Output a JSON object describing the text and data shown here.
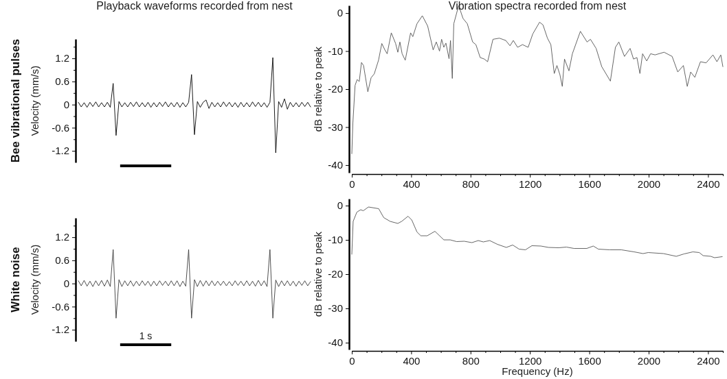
{
  "chart_data": [
    {
      "type": "line",
      "title": "Playback waveforms recorded from nest",
      "ylabel": "Velocity (mm/s)",
      "annotations": [
        "Bee vibrational pulses"
      ],
      "tick_labels": "y",
      "ylim": [
        -1.5,
        1.7
      ],
      "yticks": [
        1.2,
        {
          "value": 0.9,
          "label": null
        },
        0.6,
        {
          "value": 0.3,
          "label": null
        },
        0,
        {
          "value": -0.3,
          "label": null
        },
        -0.6,
        {
          "value": -0.9,
          "label": null
        },
        -1.2,
        {
          "value": 1.5,
          "label": null
        }
      ],
      "categories": [
        null,
        null,
        null,
        null,
        null,
        null,
        null,
        null,
        null,
        null,
        null,
        null,
        null,
        null,
        null,
        null,
        null,
        null,
        null,
        null,
        null,
        null,
        null,
        null,
        null,
        null,
        null,
        null,
        null,
        null,
        null,
        null,
        null,
        null,
        null,
        null,
        null,
        null,
        null,
        null,
        null,
        null,
        null,
        null,
        null,
        null,
        null,
        null,
        null,
        null,
        null,
        null,
        null,
        null,
        null,
        null,
        null,
        null,
        null,
        null,
        null,
        null,
        null,
        null,
        null,
        null,
        null,
        null,
        null,
        null,
        null,
        null,
        null,
        null,
        null,
        null,
        null,
        null,
        null,
        null,
        null
      ],
      "series": [
        {
          "color": "#000000",
          "values": [
            0.06,
            -0.06,
            0.05,
            -0.07,
            0.06,
            -0.05,
            0.07,
            -0.06,
            0.05,
            -0.06,
            0.06,
            -0.07,
            0.55,
            -0.8,
            0.08,
            -0.06,
            0.05,
            -0.06,
            0.06,
            -0.05,
            0.07,
            -0.06,
            0.05,
            -0.06,
            0.06,
            -0.07,
            0.05,
            -0.06,
            0.06,
            -0.05,
            0.07,
            -0.06,
            0.05,
            -0.06,
            0.06,
            -0.07,
            0.05,
            -0.06,
            0.06,
            0.78,
            -0.78,
            0.08,
            -0.07,
            0.06,
            0.12,
            -0.1,
            0.06,
            -0.06,
            0.05,
            -0.06,
            0.07,
            -0.05,
            0.06,
            -0.06,
            0.05,
            -0.07,
            0.06,
            -0.06,
            0.05,
            -0.06,
            0.07,
            -0.05,
            0.06,
            -0.06,
            0.05,
            -0.07,
            0.06,
            1.22,
            -1.25,
            0.08,
            -0.07,
            0.15,
            -0.12,
            0.06,
            -0.06,
            0.05,
            -0.06,
            0.06,
            -0.05,
            0.06,
            -0.06
          ]
        }
      ]
    },
    {
      "type": "line",
      "title": "Vibration spectra recorded from nest",
      "ylabel": "dB relative to peak",
      "xlim": [
        0,
        2500
      ],
      "ylim": [
        -42,
        2
      ],
      "xticks": [
        0,
        {
          "value": 100,
          "label": null
        },
        {
          "value": 200,
          "label": null
        },
        {
          "value": 300,
          "label": null
        },
        400,
        {
          "value": 500,
          "label": null
        },
        {
          "value": 600,
          "label": null
        },
        {
          "value": 700,
          "label": null
        },
        800,
        {
          "value": 900,
          "label": null
        },
        {
          "value": 1000,
          "label": null
        },
        {
          "value": 1100,
          "label": null
        },
        1200,
        {
          "value": 1300,
          "label": null
        },
        {
          "value": 1400,
          "label": null
        },
        {
          "value": 1500,
          "label": null
        },
        1600,
        {
          "value": 1700,
          "label": null
        },
        {
          "value": 1800,
          "label": null
        },
        {
          "value": 1900,
          "label": null
        },
        2000,
        {
          "value": 2100,
          "label": null
        },
        {
          "value": 2200,
          "label": null
        },
        {
          "value": 2300,
          "label": null
        },
        2400,
        {
          "value": 2500,
          "label": null
        }
      ],
      "yticks": [
        0,
        -10,
        -20,
        -30,
        -40
      ],
      "series": [
        {
          "color": "#555555",
          "x": [
            0,
            7,
            22,
            36,
            50,
            65,
            79,
            108,
            130,
            151,
            180,
            202,
            223,
            238,
            266,
            295,
            310,
            324,
            339,
            360,
            396,
            411,
            439,
            475,
            511,
            548,
            569,
            591,
            605,
            620,
            634,
            655,
            665,
            677,
            687,
            720,
            749,
            778,
            814,
            836,
            865,
            893,
            915,
            951,
            994,
            1037,
            1066,
            1088,
            1117,
            1150,
            1188,
            1219,
            1265,
            1288,
            1318,
            1341,
            1364,
            1382,
            1402,
            1418,
            1433,
            1463,
            1486,
            1540,
            1585,
            1608,
            1646,
            1684,
            1742,
            1776,
            1799,
            1837,
            1875,
            1898,
            1921,
            1941,
            1959,
            1987,
            2013,
            2043,
            2104,
            2158,
            2196,
            2234,
            2260,
            2283,
            2311,
            2349,
            2387,
            2433,
            2460,
            2486,
            2500
          ],
          "values": [
            -37,
            -29,
            -19,
            -17.5,
            -18,
            -13,
            -13.8,
            -20.7,
            -17,
            -16,
            -12.4,
            -8,
            -9.7,
            -10.7,
            -5.2,
            -8,
            -10.3,
            -7.6,
            -10.7,
            -12.4,
            -5.2,
            -6.2,
            -2.8,
            -0.7,
            -3.4,
            -9.7,
            -7.6,
            -10,
            -6.9,
            -9,
            -7.9,
            -12,
            -7.2,
            -17.2,
            -2.8,
            2,
            -1.4,
            -2.8,
            -7.6,
            -8.3,
            -11.7,
            -12.1,
            -12.8,
            -6.9,
            -6.6,
            -7.2,
            -8.6,
            -7.2,
            -9,
            -8.3,
            -9,
            -5.5,
            -2.4,
            -3.1,
            -6.6,
            -8.3,
            -15.9,
            -13.8,
            -16.2,
            -19.3,
            -12.1,
            -15.2,
            -10.7,
            -4.8,
            -7.6,
            -6.9,
            -9.3,
            -14.1,
            -17.9,
            -9,
            -7.6,
            -11.4,
            -9.3,
            -12.1,
            -11.7,
            -15.9,
            -10.7,
            -12.6,
            -10.7,
            -11,
            -10.3,
            -11.4,
            -15.5,
            -13.8,
            -19.3,
            -15.5,
            -16.9,
            -12.8,
            -13.1,
            -11,
            -12.8,
            -11,
            -14.1
          ]
        }
      ]
    },
    {
      "type": "line",
      "ylabel": "Velocity (mm/s)",
      "annotations": [
        "White noise",
        "1 s"
      ],
      "tick_labels": "y",
      "ylim": [
        -1.5,
        1.7
      ],
      "yticks": [
        1.2,
        {
          "value": 0.9,
          "label": null
        },
        0.6,
        {
          "value": 0.3,
          "label": null
        },
        0,
        {
          "value": -0.3,
          "label": null
        },
        -0.6,
        {
          "value": -0.9,
          "label": null
        },
        -1.2,
        {
          "value": 1.5,
          "label": null
        }
      ],
      "categories": [
        null,
        null,
        null,
        null,
        null,
        null,
        null,
        null,
        null,
        null,
        null,
        null,
        null,
        null,
        null,
        null,
        null,
        null,
        null,
        null,
        null,
        null,
        null,
        null,
        null,
        null,
        null,
        null,
        null,
        null,
        null,
        null,
        null,
        null,
        null,
        null,
        null,
        null,
        null,
        null,
        null,
        null,
        null,
        null,
        null,
        null,
        null,
        null,
        null,
        null,
        null,
        null,
        null,
        null,
        null,
        null,
        null,
        null,
        null,
        null,
        null,
        null,
        null,
        null,
        null,
        null,
        null,
        null,
        null,
        null,
        null,
        null,
        null,
        null,
        null,
        null,
        null,
        null,
        null,
        null,
        null
      ],
      "series": [
        {
          "color": "#3a3a3a",
          "values": [
            0.07,
            -0.06,
            0.08,
            -0.07,
            0.06,
            -0.08,
            0.07,
            -0.06,
            0.08,
            -0.07,
            0.09,
            -0.08,
            0.88,
            -0.9,
            0.1,
            -0.08,
            0.07,
            -0.06,
            0.07,
            -0.07,
            0.06,
            -0.06,
            0.07,
            -0.05,
            0.06,
            -0.07,
            0.06,
            -0.06,
            0.07,
            -0.05,
            0.06,
            -0.06,
            0.07,
            -0.06,
            0.07,
            -0.08,
            0.06,
            -0.07,
            0.88,
            -0.9,
            0.1,
            -0.08,
            0.08,
            -0.07,
            0.07,
            -0.06,
            0.07,
            -0.06,
            0.06,
            -0.05,
            0.06,
            -0.06,
            0.05,
            -0.06,
            0.07,
            -0.05,
            0.06,
            -0.06,
            0.07,
            -0.06,
            0.06,
            -0.07,
            0.08,
            -0.06,
            0.07,
            -0.08,
            0.88,
            -0.9,
            0.09,
            -0.08,
            0.07,
            -0.06,
            0.07,
            -0.06,
            0.06,
            -0.07,
            0.06,
            -0.05,
            0.07,
            -0.06,
            0.05
          ]
        }
      ]
    },
    {
      "type": "line",
      "ylabel": "dB relative to peak",
      "xlabel": "Frequency (Hz)",
      "xlim": [
        0,
        2500
      ],
      "ylim": [
        -42,
        2
      ],
      "xticks": [
        0,
        {
          "value": 100,
          "label": null
        },
        {
          "value": 200,
          "label": null
        },
        {
          "value": 300,
          "label": null
        },
        400,
        {
          "value": 500,
          "label": null
        },
        {
          "value": 600,
          "label": null
        },
        {
          "value": 700,
          "label": null
        },
        800,
        {
          "value": 900,
          "label": null
        },
        {
          "value": 1000,
          "label": null
        },
        {
          "value": 1100,
          "label": null
        },
        1200,
        {
          "value": 1300,
          "label": null
        },
        {
          "value": 1400,
          "label": null
        },
        {
          "value": 1500,
          "label": null
        },
        1600,
        {
          "value": 1700,
          "label": null
        },
        {
          "value": 1800,
          "label": null
        },
        {
          "value": 1900,
          "label": null
        },
        2000,
        {
          "value": 2100,
          "label": null
        },
        {
          "value": 2200,
          "label": null
        },
        {
          "value": 2300,
          "label": null
        },
        2400,
        {
          "value": 2500,
          "label": null
        }
      ],
      "yticks": [
        0,
        -10,
        -20,
        -30,
        -40
      ],
      "series": [
        {
          "color": "#555555",
          "x": [
            0,
            9,
            34,
            60,
            77,
            112,
            181,
            215,
            258,
            310,
            336,
            379,
            404,
            439,
            465,
            508,
            560,
            620,
            663,
            706,
            757,
            809,
            852,
            886,
            929,
            981,
            1041,
            1084,
            1127,
            1170,
            1213,
            1274,
            1325,
            1394,
            1446,
            1497,
            1583,
            1627,
            1661,
            1738,
            1816,
            1902,
            1962,
            1997,
            2100,
            2186,
            2238,
            2298,
            2341,
            2367,
            2418,
            2444,
            2496
          ],
          "values": [
            -14.2,
            -4.6,
            -1.9,
            -1.2,
            -1.5,
            -0.4,
            -0.9,
            -3.5,
            -4.6,
            -5.2,
            -4.6,
            -3.1,
            -4.2,
            -7.7,
            -8.8,
            -8.8,
            -7.5,
            -10,
            -10,
            -10.5,
            -10.4,
            -10.8,
            -10.2,
            -10.6,
            -10.2,
            -11.3,
            -12.2,
            -11.5,
            -12.7,
            -12.9,
            -11.7,
            -11.8,
            -12.2,
            -12.3,
            -12.1,
            -12.5,
            -12.5,
            -11.8,
            -12.7,
            -12.9,
            -12.9,
            -13.5,
            -14,
            -13.7,
            -14,
            -14.8,
            -14.1,
            -13.5,
            -13.7,
            -14.6,
            -14.8,
            -15.2,
            -14.9
          ]
        }
      ]
    }
  ]
}
